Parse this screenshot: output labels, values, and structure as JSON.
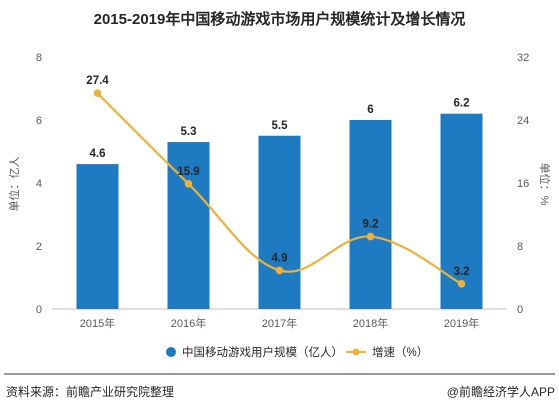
{
  "chart_data": {
    "type": "bar",
    "title": "2015-2019年中国移动游戏市场用户规模统计及增长情况",
    "categories": [
      "2015年",
      "2016年",
      "2017年",
      "2018年",
      "2019年"
    ],
    "ylabel_left": "单位：亿人",
    "ylabel_right": "单位：%",
    "ylim_left": [
      0,
      8
    ],
    "ylim_right": [
      0,
      32
    ],
    "yticks_left": [
      "0",
      "2",
      "4",
      "6",
      "8"
    ],
    "yticks_right": [
      "0",
      "8",
      "16",
      "24",
      "32"
    ],
    "grid": false,
    "legend_position": "bottom",
    "series": [
      {
        "name": "中国移动游戏用户规模（亿人）",
        "type": "bar",
        "axis": "left",
        "color": "#1f7bc1",
        "values": [
          4.6,
          5.3,
          5.5,
          6,
          6.2
        ],
        "labels": [
          "4.6",
          "5.3",
          "5.5",
          "6",
          "6.2"
        ]
      },
      {
        "name": "增速（%）",
        "type": "line",
        "axis": "right",
        "smooth": true,
        "color": "#f2b134",
        "values": [
          27.4,
          15.9,
          4.9,
          9.2,
          3.2
        ],
        "labels": [
          "27.4",
          "15.9",
          "4.9",
          "9.2",
          "3.2"
        ]
      }
    ]
  },
  "footer": {
    "source": "资料来源：前瞻产业研究院整理",
    "brand": "@前瞻经济学人APP"
  }
}
